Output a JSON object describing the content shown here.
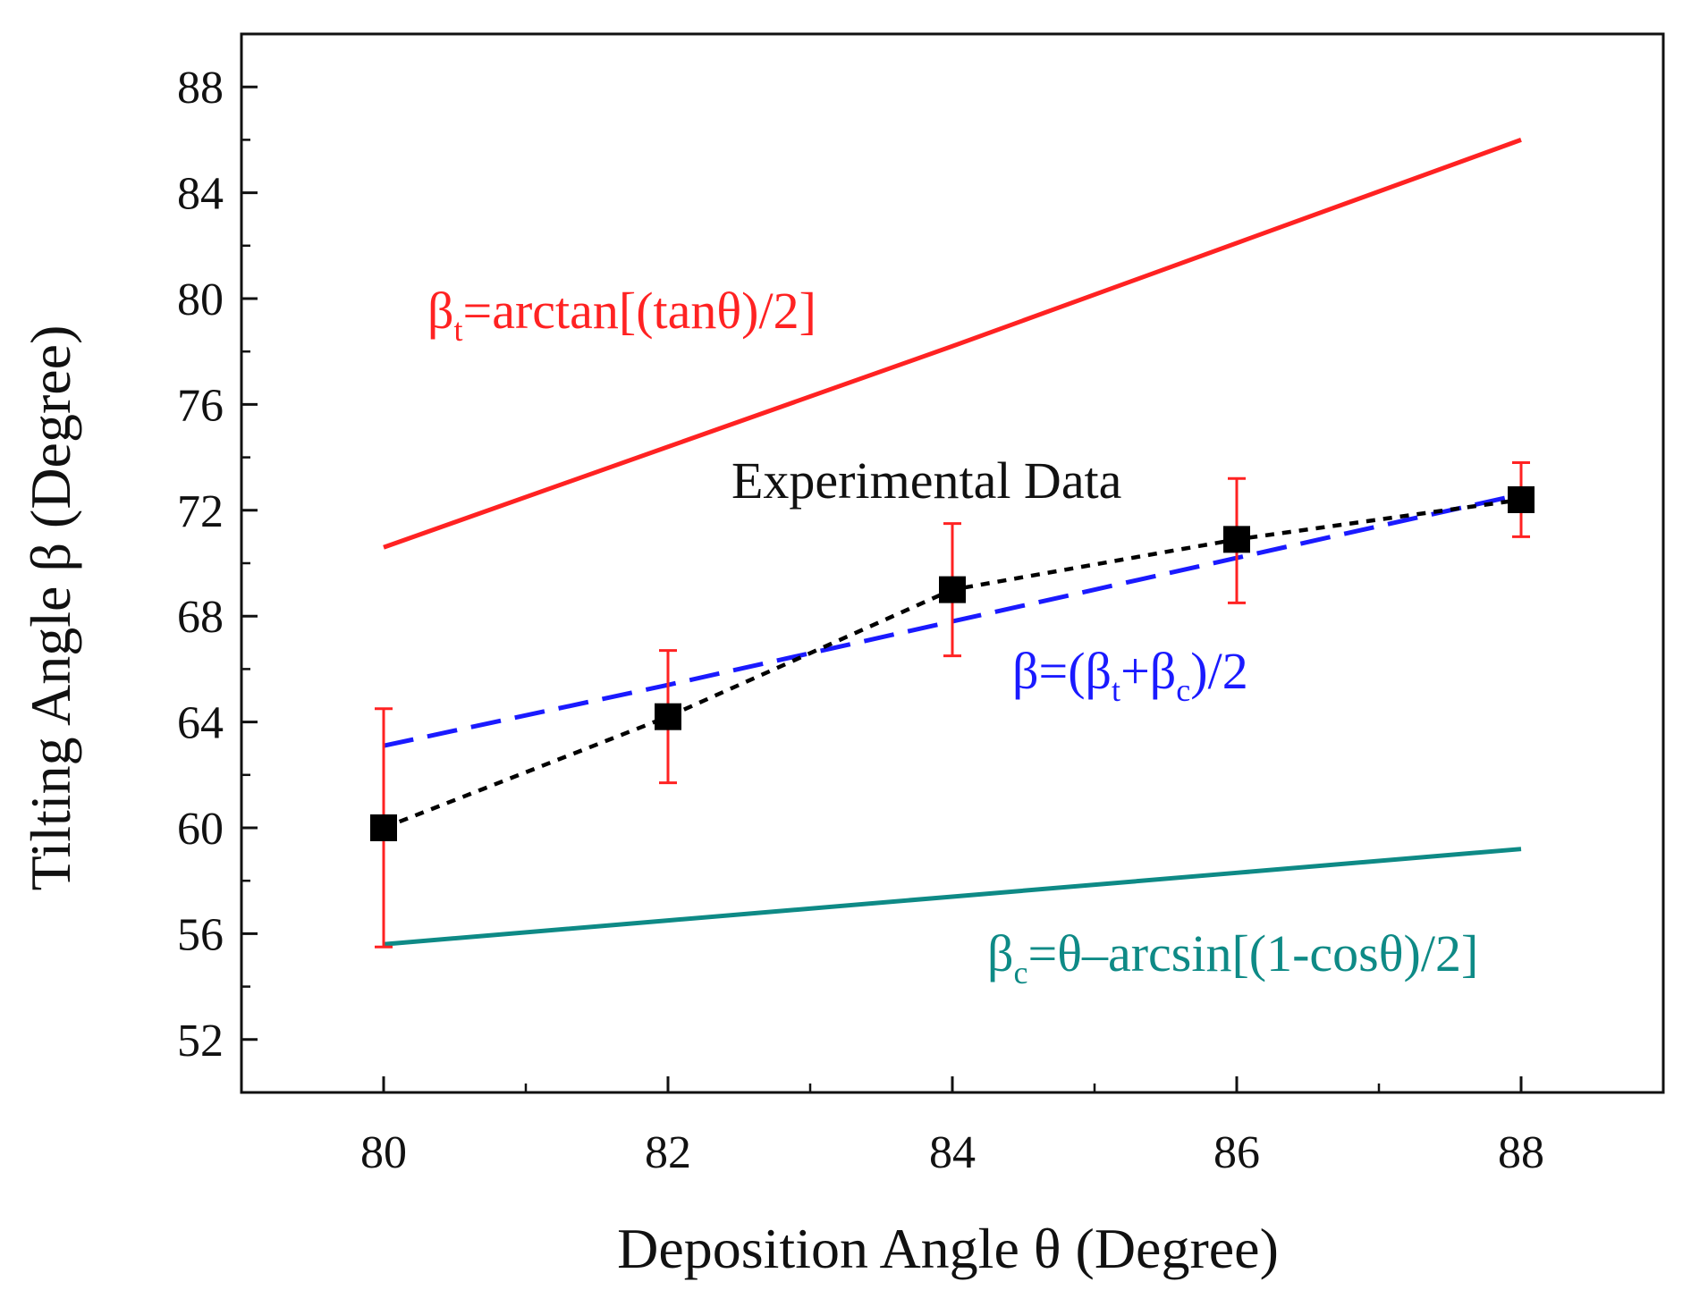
{
  "chart_data": {
    "type": "line",
    "title": "",
    "xlabel": "Deposition Angle θ (Degree)",
    "ylabel": "Tilting Angle β  (Degree)",
    "xlim": [
      79,
      89
    ],
    "ylim": [
      50,
      90
    ],
    "xticks": [
      80,
      82,
      84,
      86,
      88
    ],
    "yticks": [
      52,
      56,
      60,
      64,
      68,
      72,
      76,
      80,
      84,
      88
    ],
    "x_minor_step": 1,
    "y_minor_step": 2,
    "grid": false,
    "series": [
      {
        "name": "βt=arctan[(tanθ)/2]",
        "label_main": "β",
        "label_sub": "t",
        "label_rest": "=arctan[(tanθ)/2]",
        "style": "solid",
        "color": "#ff2222",
        "x": [
          80,
          82,
          84,
          86,
          88
        ],
        "y": [
          70.6,
          74.4,
          78.2,
          82.1,
          86.0
        ]
      },
      {
        "name": "β=(βt+βc)/2",
        "label_parts": [
          "β=(β",
          "t",
          "+β",
          "c",
          ")/2"
        ],
        "style": "dashed",
        "color": "#1a1aff",
        "x": [
          80,
          82,
          84,
          86,
          88
        ],
        "y": [
          63.1,
          65.4,
          67.8,
          70.2,
          72.6
        ]
      },
      {
        "name": "βc=θ–arcsin[(1-cosθ)/2]",
        "label_main": "β",
        "label_sub": "c",
        "label_rest": "=θ–arcsin[(1-cosθ)/2]",
        "style": "solid",
        "color": "#0e8a86",
        "x": [
          80,
          82,
          84,
          86,
          88
        ],
        "y": [
          55.6,
          56.5,
          57.4,
          58.3,
          59.2
        ]
      },
      {
        "name": "Experimental Data",
        "style": "dotted",
        "color": "#000000",
        "marker": "square",
        "errorbar_color": "#ff2222",
        "x": [
          80,
          82,
          84,
          86,
          88
        ],
        "y": [
          60.0,
          64.2,
          69.0,
          70.9,
          72.4
        ],
        "err_low": [
          55.5,
          61.7,
          66.5,
          68.5,
          71.0
        ],
        "err_high": [
          64.5,
          66.7,
          71.5,
          73.2,
          73.8
        ]
      }
    ],
    "annotations": {
      "experimental": "Experimental Data"
    }
  }
}
